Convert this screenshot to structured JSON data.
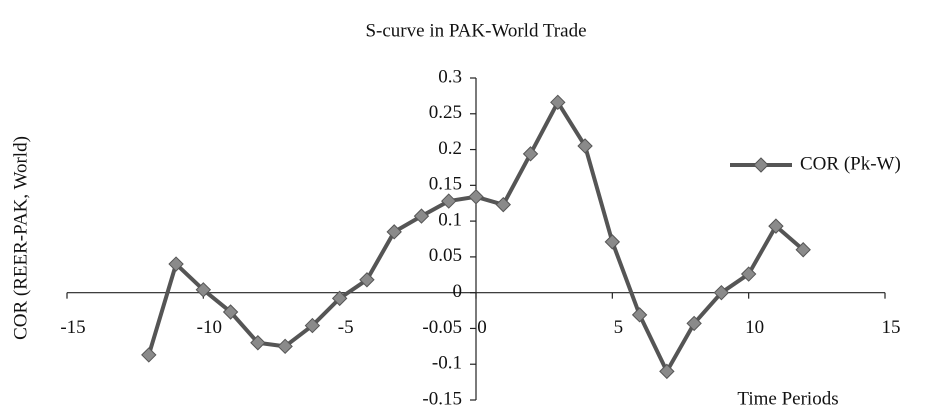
{
  "chart_data": {
    "type": "line",
    "title": "S-curve in PAK-World Trade",
    "x_label": "Time Periods",
    "y_label": "COR (REER-PAK, World)",
    "x": [
      -12,
      -11,
      -10,
      -9,
      -8,
      -7,
      -6,
      -5,
      -4,
      -3,
      -2,
      -1,
      0,
      1,
      2,
      3,
      4,
      5,
      6,
      7,
      8,
      9,
      10,
      11,
      12
    ],
    "series": [
      {
        "name": "COR (Pk-W)",
        "color": "#555555",
        "marker_color": "#8a8a8a",
        "values": [
          -0.087,
          0.04,
          0.004,
          -0.027,
          -0.07,
          -0.075,
          -0.046,
          -0.008,
          0.018,
          0.085,
          0.107,
          0.128,
          0.134,
          0.123,
          0.194,
          0.266,
          0.205,
          0.071,
          -0.031,
          -0.11,
          -0.043,
          0.0,
          0.026,
          0.093,
          0.06
        ]
      }
    ],
    "xlim": [
      -15,
      15
    ],
    "xticks": [
      -15,
      -10,
      -5,
      0,
      5,
      10,
      15
    ],
    "ylim": [
      -0.15,
      0.3
    ],
    "yticks": [
      0.3,
      0.25,
      0.2,
      0.15,
      0.1,
      0.05,
      0,
      -0.05,
      -0.1,
      -0.15
    ],
    "legend": "right"
  }
}
